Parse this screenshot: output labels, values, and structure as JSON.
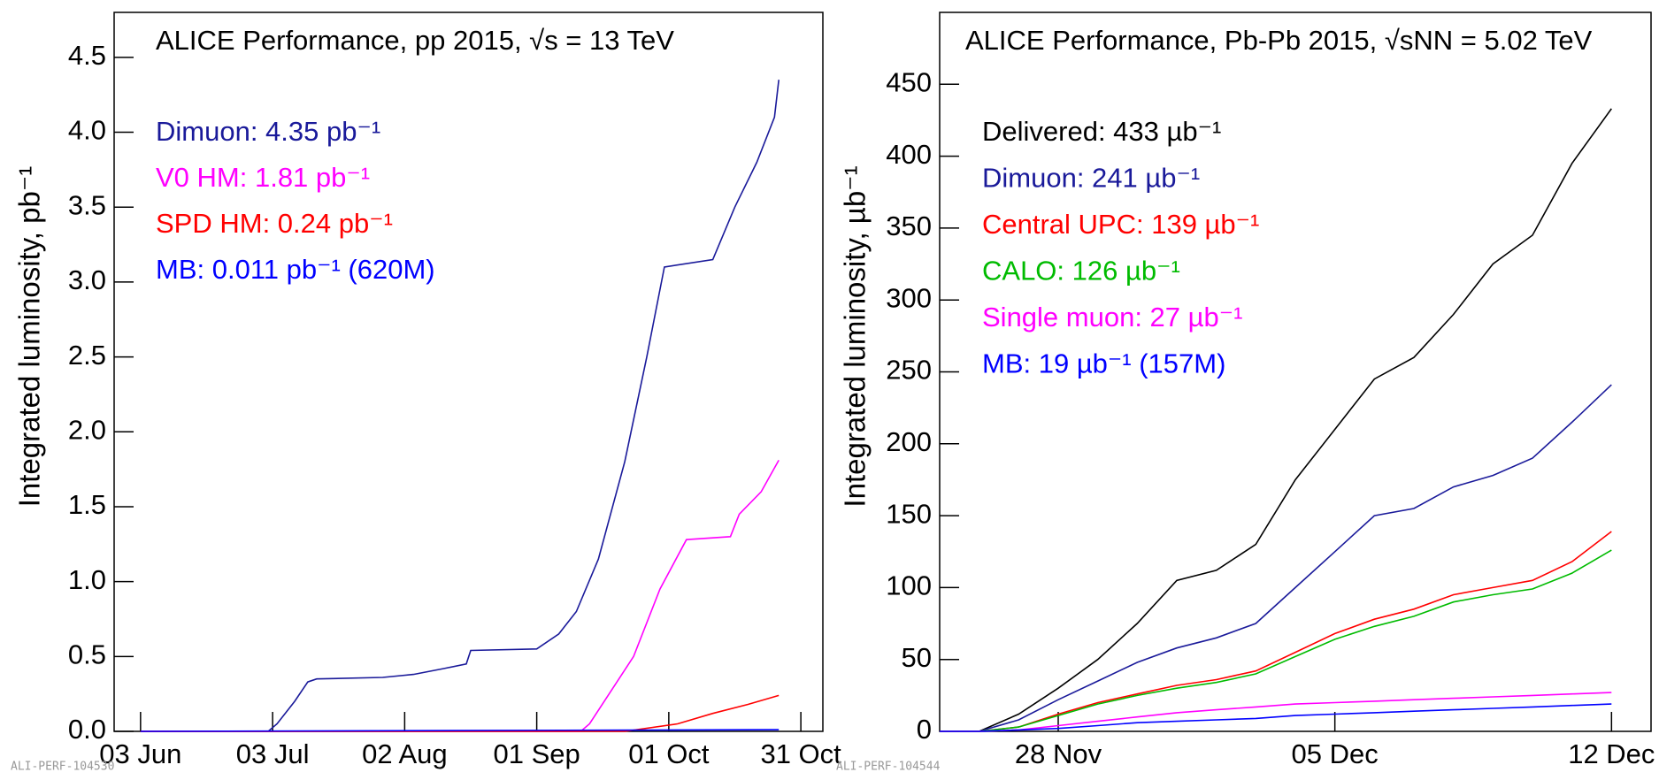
{
  "chart_data": [
    {
      "type": "line",
      "title": "ALICE Performance, pp 2015, √s = 13 TeV",
      "y_label": "Integrated luminosity, pb⁻¹",
      "watermark": "ALI-PERF-104530",
      "xlim": [
        "2015-05-28",
        "2015-11-05"
      ],
      "xticks": [
        {
          "value": "2015-06-03",
          "label": "03 Jun"
        },
        {
          "value": "2015-07-03",
          "label": "03 Jul"
        },
        {
          "value": "2015-08-02",
          "label": "02 Aug"
        },
        {
          "value": "2015-09-01",
          "label": "01 Sep"
        },
        {
          "value": "2015-10-01",
          "label": "01 Oct"
        },
        {
          "value": "2015-10-31",
          "label": "31 Oct"
        }
      ],
      "ylim": [
        0,
        4.8
      ],
      "yticks": [
        {
          "value": 0,
          "label": "0.0"
        },
        0.5,
        {
          "value": 1,
          "label": "1.0"
        },
        1.5,
        {
          "value": 2,
          "label": "2.0"
        },
        2.5,
        {
          "value": 3,
          "label": "3.0"
        },
        3.5,
        {
          "value": 4,
          "label": "4.0"
        },
        4.5
      ],
      "series": [
        {
          "name": "Dimuon: 4.35 pb⁻¹",
          "color": "#1a1a9a",
          "x": [
            "2015-06-03",
            "2015-07-02",
            "2015-07-04",
            "2015-07-08",
            "2015-07-11",
            "2015-07-13",
            "2015-07-28",
            "2015-08-04",
            "2015-08-11",
            "2015-08-16",
            "2015-08-17",
            "2015-09-01",
            "2015-09-06",
            "2015-09-10",
            "2015-09-15",
            "2015-09-21",
            "2015-09-26",
            "2015-09-30",
            "2015-10-11",
            "2015-10-16",
            "2015-10-21",
            "2015-10-25",
            "2015-10-26"
          ],
          "values": [
            0,
            0,
            0.05,
            0.2,
            0.33,
            0.35,
            0.36,
            0.38,
            0.42,
            0.45,
            0.54,
            0.55,
            0.65,
            0.8,
            1.15,
            1.8,
            2.5,
            3.1,
            3.15,
            3.5,
            3.8,
            4.1,
            4.35
          ]
        },
        {
          "name": "V0 HM: 1.81 pb⁻¹",
          "color": "#ff00ff",
          "x": [
            "2015-06-03",
            "2015-09-11",
            "2015-09-13",
            "2015-09-23",
            "2015-09-29",
            "2015-10-05",
            "2015-10-15",
            "2015-10-17",
            "2015-10-22",
            "2015-10-26"
          ],
          "values": [
            0,
            0,
            0.05,
            0.5,
            0.95,
            1.28,
            1.3,
            1.45,
            1.6,
            1.81
          ]
        },
        {
          "name": "SPD HM: 0.24 pb⁻¹",
          "color": "#ff0000",
          "x": [
            "2015-06-03",
            "2015-09-21",
            "2015-10-03",
            "2015-10-11",
            "2015-10-19",
            "2015-10-26"
          ],
          "values": [
            0,
            0,
            0.05,
            0.12,
            0.18,
            0.24
          ]
        },
        {
          "name": "MB: 0.011 pb⁻¹ (620M)",
          "color": "#0000ff",
          "x": [
            "2015-06-03",
            "2015-10-26"
          ],
          "values": [
            0,
            0.011
          ]
        }
      ]
    },
    {
      "type": "line",
      "title": "ALICE Performance, Pb-Pb 2015, √sNN = 5.02 TeV",
      "y_label": "Integrated luminosity, µb⁻¹",
      "watermark": "ALI-PERF-104544",
      "xlim": [
        "2015-11-25",
        "2015-12-13"
      ],
      "xticks": [
        {
          "value": "2015-11-28",
          "label": "28 Nov"
        },
        {
          "value": "2015-12-05",
          "label": "05 Dec"
        },
        {
          "value": "2015-12-12",
          "label": "12 Dec"
        }
      ],
      "ylim": [
        0,
        500
      ],
      "yticks": [
        0,
        50,
        100,
        150,
        200,
        250,
        300,
        350,
        400,
        450
      ],
      "x": [
        "2015-11-25",
        "2015-11-26",
        "2015-11-27",
        "2015-11-28",
        "2015-11-29",
        "2015-11-30",
        "2015-12-01",
        "2015-12-02",
        "2015-12-03",
        "2015-12-04",
        "2015-12-05",
        "2015-12-06",
        "2015-12-07",
        "2015-12-08",
        "2015-12-09",
        "2015-12-10",
        "2015-12-11",
        "2015-12-12"
      ],
      "series": [
        {
          "name": "Delivered: 433 µb⁻¹",
          "color": "#000000",
          "values": [
            0,
            0,
            12,
            30,
            50,
            75,
            105,
            112,
            130,
            175,
            210,
            245,
            260,
            290,
            325,
            345,
            395,
            433
          ]
        },
        {
          "name": "Dimuon: 241 µb⁻¹",
          "color": "#1a1a9a",
          "values": [
            0,
            0,
            8,
            22,
            35,
            48,
            58,
            65,
            75,
            100,
            125,
            150,
            155,
            170,
            178,
            190,
            215,
            241
          ]
        },
        {
          "name": "Central UPC: 139 µb⁻¹",
          "color": "#ff0000",
          "values": [
            0,
            0,
            3,
            12,
            20,
            26,
            32,
            36,
            42,
            55,
            68,
            78,
            85,
            95,
            100,
            105,
            118,
            139
          ]
        },
        {
          "name": "CALO: 126 µb⁻¹",
          "color": "#00bb00",
          "values": [
            0,
            0,
            3,
            11,
            19,
            25,
            30,
            34,
            40,
            52,
            64,
            73,
            80,
            90,
            95,
            99,
            110,
            126
          ]
        },
        {
          "name": "Single muon: 27 µb⁻¹",
          "color": "#ff00ff",
          "values": [
            0,
            0,
            1,
            4,
            7,
            10,
            13,
            15,
            17,
            19,
            20,
            21,
            22,
            23,
            24,
            25,
            26,
            27
          ]
        },
        {
          "name": "MB: 19 µb⁻¹ (157M)",
          "color": "#0000ff",
          "values": [
            0,
            0,
            1,
            2,
            4,
            6,
            7,
            8,
            9,
            11,
            12,
            13,
            14,
            15,
            16,
            17,
            18,
            19
          ]
        }
      ]
    }
  ]
}
